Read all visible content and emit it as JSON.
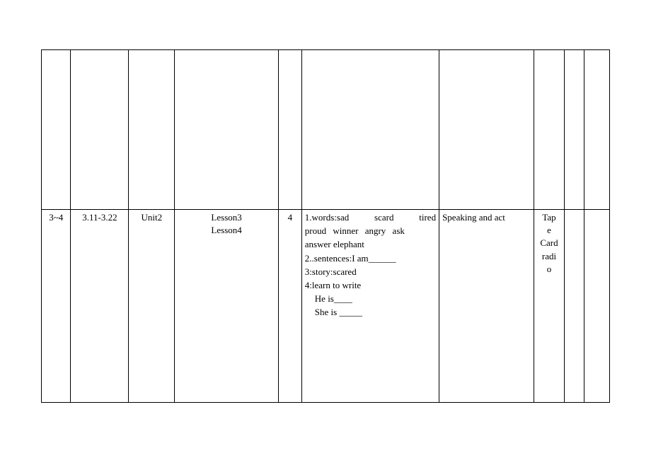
{
  "table": {
    "columns_count": 10,
    "rows": [
      {
        "cells": [
          "",
          "",
          "",
          "",
          "",
          "",
          "",
          "",
          "",
          ""
        ]
      },
      {
        "week": "3~4",
        "date": "3.11-3.22",
        "unit": "Unit2",
        "lessons": [
          "Lesson3",
          "Lesson4"
        ],
        "period": "4",
        "content": {
          "line1_words": "1.words:sad",
          "line1_w2": "scard",
          "line1_w3": "tired",
          "line2": "proud   winner   angry   ask",
          "line3": "answer elephant",
          "line4": "2..sentences:I am______",
          "line5": "3:story:scared",
          "line6": "4:learn to write",
          "line7": "He is____",
          "line8": "She is _____"
        },
        "method": "Speaking and act",
        "materials": [
          "Tap",
          "e",
          "Card",
          "radi",
          "o"
        ]
      }
    ]
  },
  "styling": {
    "font_family": "Times New Roman",
    "font_size_pt": 13,
    "border_color": "#000000",
    "background_color": "#ffffff",
    "text_color": "#000000"
  }
}
